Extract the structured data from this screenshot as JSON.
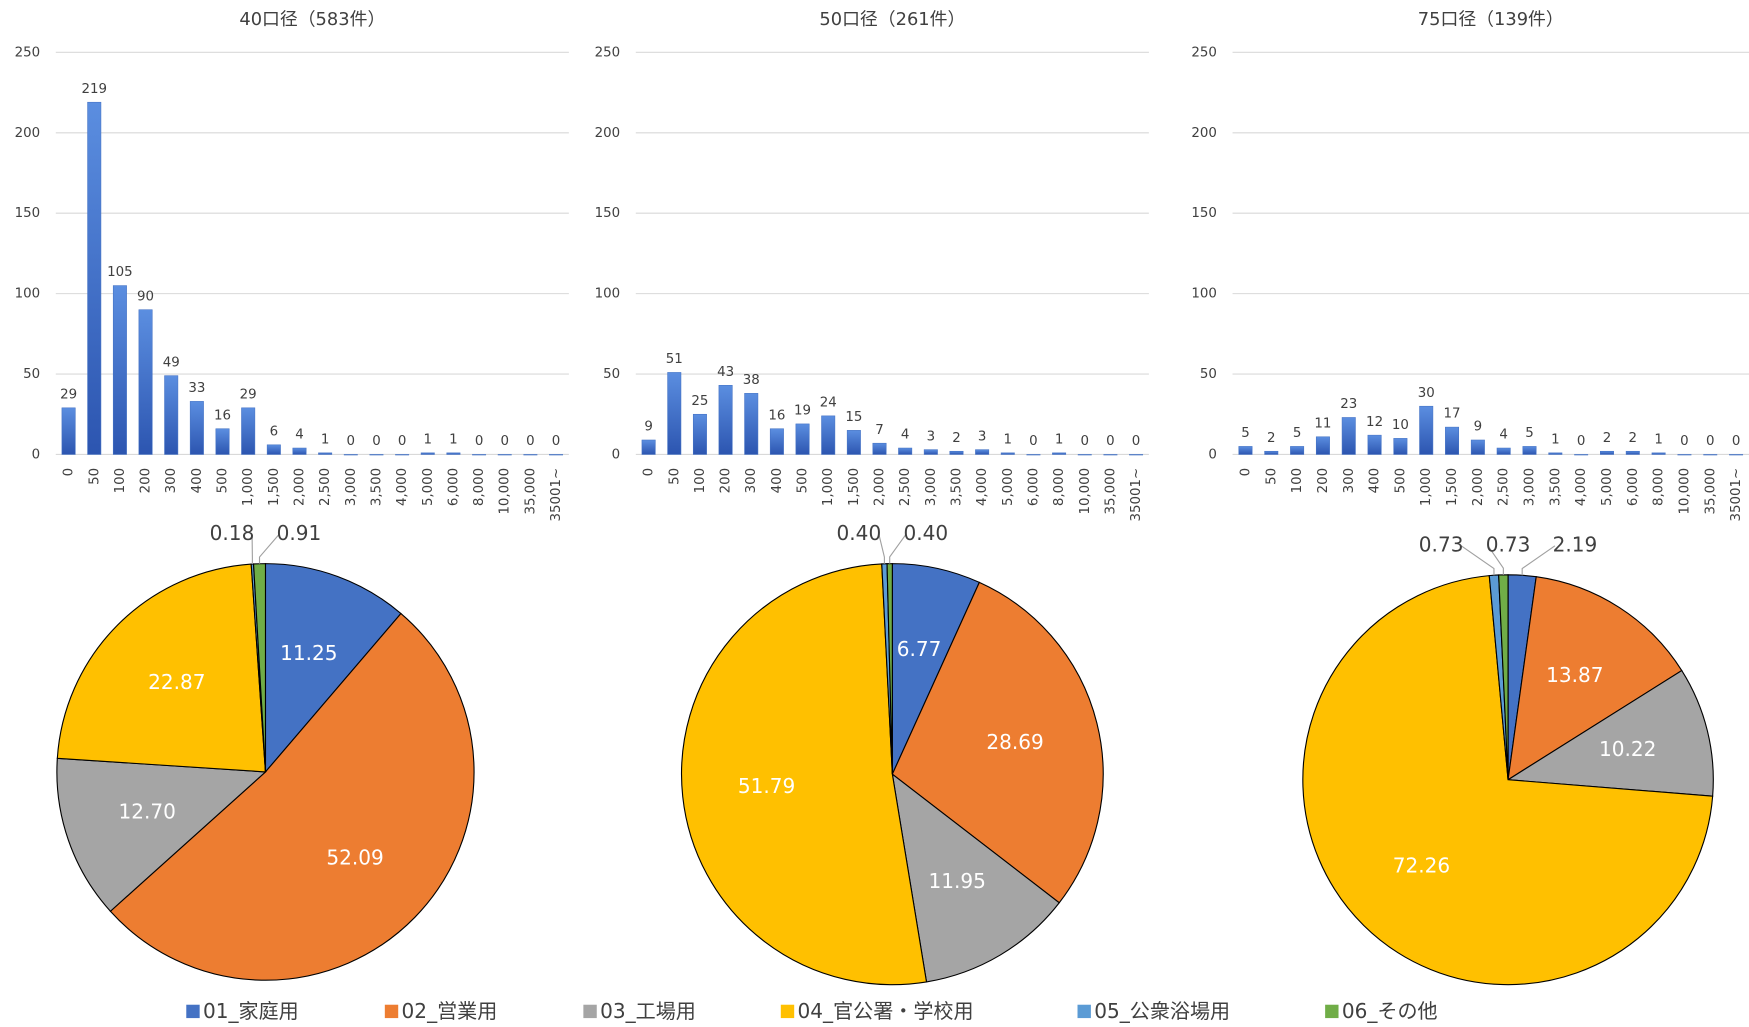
{
  "chart_data": [
    {
      "type": "bar",
      "title": "40口径（583件）",
      "color": "#4472c4",
      "grid": true,
      "categories": [
        "0",
        "50",
        "100",
        "200",
        "300",
        "400",
        "500",
        "1,000",
        "1,500",
        "2,000",
        "2,500",
        "3,000",
        "3,500",
        "4,000",
        "5,000",
        "6,000",
        "8,000",
        "10,000",
        "35,000",
        "35001~"
      ],
      "values": [
        29,
        219,
        105,
        90,
        49,
        33,
        16,
        29,
        6,
        4,
        1,
        0,
        0,
        0,
        1,
        1,
        0,
        0,
        0,
        0
      ],
      "ylim": [
        0,
        250
      ],
      "yticks": [
        0,
        50,
        100,
        150,
        200,
        250
      ]
    },
    {
      "type": "pie",
      "values": [
        11.25,
        52.09,
        12.7,
        22.87,
        0.18,
        0.91
      ],
      "value_labels": [
        "11.25",
        "52.09",
        "12.70",
        "22.87",
        "0.18",
        "0.91"
      ]
    },
    {
      "type": "bar",
      "title": "50口径（261件）",
      "color": "#4472c4",
      "grid": true,
      "categories": [
        "0",
        "50",
        "100",
        "200",
        "300",
        "400",
        "500",
        "1,000",
        "1,500",
        "2,000",
        "2,500",
        "3,000",
        "3,500",
        "4,000",
        "5,000",
        "6,000",
        "8,000",
        "10,000",
        "35,000",
        "35001~"
      ],
      "values": [
        9,
        51,
        25,
        43,
        38,
        16,
        19,
        24,
        15,
        7,
        4,
        3,
        2,
        3,
        1,
        0,
        1,
        0,
        0,
        0
      ],
      "ylim": [
        0,
        250
      ],
      "yticks": [
        0,
        50,
        100,
        150,
        200,
        250
      ]
    },
    {
      "type": "pie",
      "values": [
        6.77,
        28.69,
        11.95,
        51.79,
        0.4,
        0.4
      ],
      "value_labels": [
        "6.77",
        "28.69",
        "11.95",
        "51.79",
        "0.40",
        "0.40"
      ]
    },
    {
      "type": "bar",
      "title": "75口径（139件）",
      "color": "#4472c4",
      "grid": true,
      "categories": [
        "0",
        "50",
        "100",
        "200",
        "300",
        "400",
        "500",
        "1,000",
        "1,500",
        "2,000",
        "2,500",
        "3,000",
        "3,500",
        "4,000",
        "5,000",
        "6,000",
        "8,000",
        "10,000",
        "35,000",
        "35001~"
      ],
      "values": [
        5,
        2,
        5,
        11,
        23,
        12,
        10,
        30,
        17,
        9,
        4,
        5,
        1,
        0,
        2,
        2,
        1,
        0,
        0,
        0
      ],
      "ylim": [
        0,
        250
      ],
      "yticks": [
        0,
        50,
        100,
        150,
        200,
        250
      ]
    },
    {
      "type": "pie",
      "values": [
        2.19,
        13.87,
        10.22,
        72.26,
        0.73,
        0.73
      ],
      "value_labels": [
        "2.19",
        "13.87",
        "10.22",
        "72.26",
        "0.73",
        "0.73"
      ]
    }
  ],
  "legend": {
    "names": [
      "01_家庭用",
      "02_営業用",
      "03_工場用",
      "04_官公署・学校用",
      "05_公衆浴場用",
      "06_その他"
    ],
    "colors": [
      "#4472c4",
      "#ed7d31",
      "#a5a5a5",
      "#ffc000",
      "#5b9bd5",
      "#70ad47"
    ]
  }
}
